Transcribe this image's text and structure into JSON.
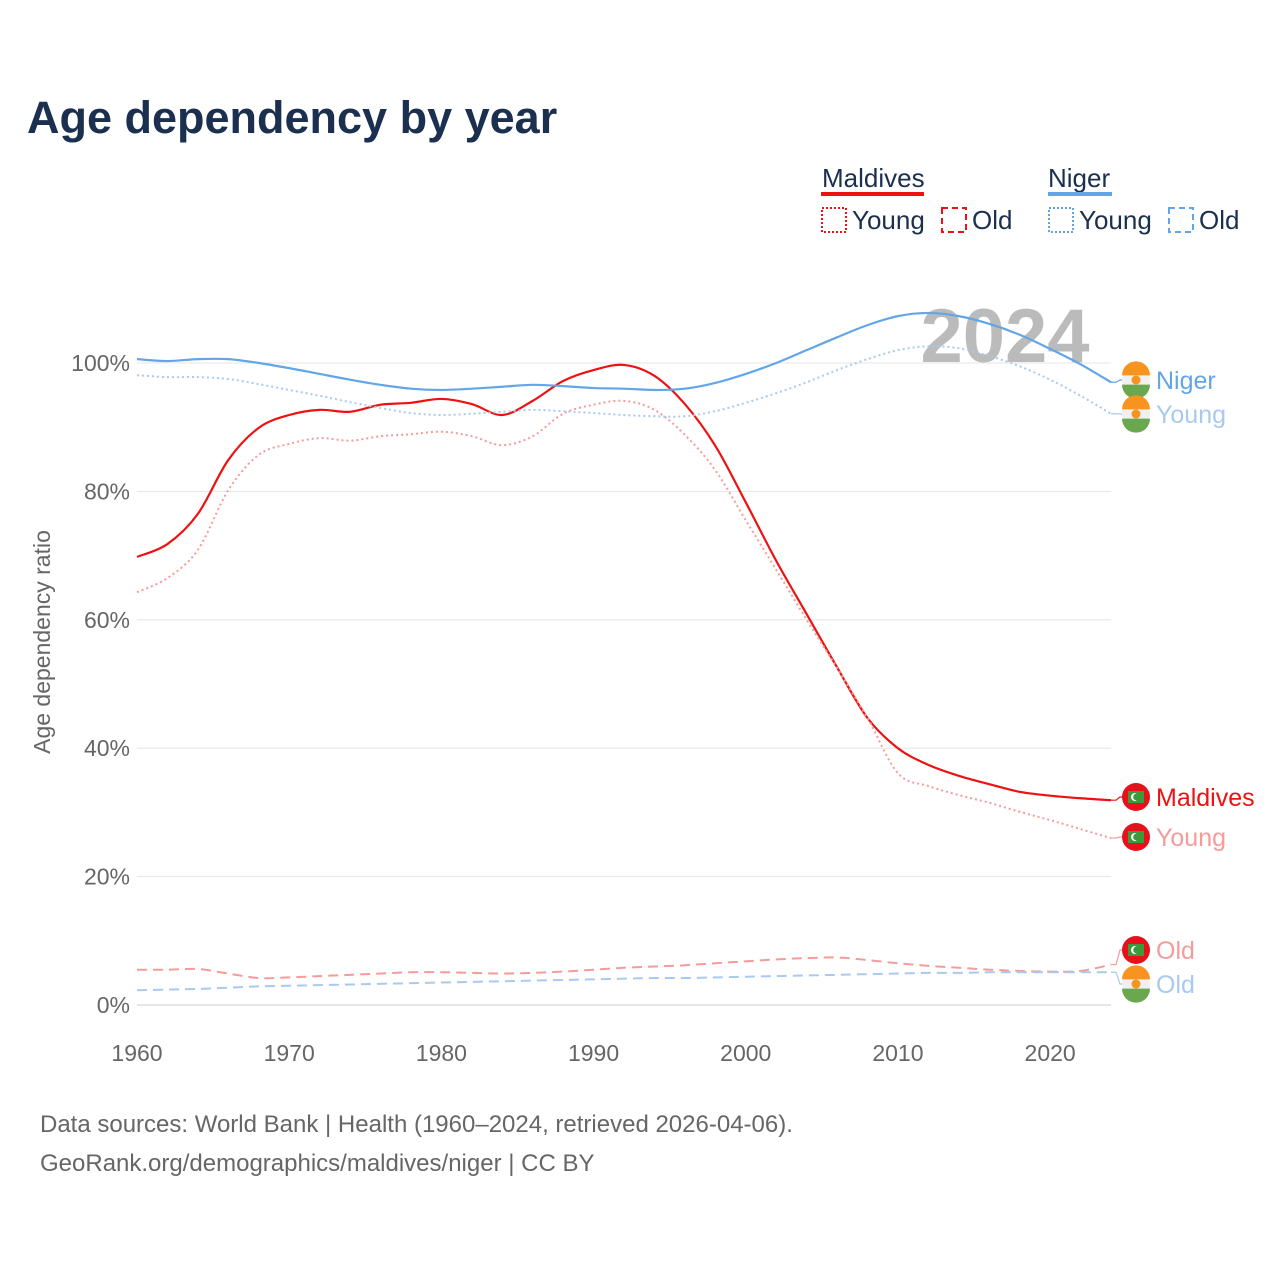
{
  "title": "Age dependency by year",
  "legend": {
    "groups": [
      {
        "name": "Maldives",
        "color": "#ee1111",
        "items": [
          "Young",
          "Old"
        ]
      },
      {
        "name": "Niger",
        "color": "#62a6e8",
        "items": [
          "Young",
          "Old"
        ]
      }
    ]
  },
  "current_year": "2024",
  "source_line1": "Data sources: World Bank | Health (1960–2024, retrieved 2026-04-06).",
  "source_line2": "GeoRank.org/demographics/maldives/niger | CC BY",
  "end_labels": {
    "niger_total": "Niger",
    "niger_young": "Young",
    "maldives_total": "Maldives",
    "maldives_young": "Young",
    "maldives_old": "Old",
    "niger_old": "Old"
  },
  "chart_data": {
    "type": "line",
    "title": "Age dependency by year",
    "xlabel": "",
    "ylabel": "Age dependency ratio",
    "xlim": [
      1960,
      2024
    ],
    "ylim": [
      0,
      100
    ],
    "x_ticks": [
      "1960",
      "1970",
      "1980",
      "1990",
      "2000",
      "2010",
      "2020"
    ],
    "y_ticks": [
      "0%",
      "20%",
      "40%",
      "60%",
      "80%",
      "100%"
    ],
    "grid": true,
    "legend_position": "top-right",
    "x": [
      1960,
      1962,
      1964,
      1966,
      1968,
      1970,
      1972,
      1974,
      1976,
      1978,
      1980,
      1982,
      1984,
      1986,
      1988,
      1990,
      1992,
      1994,
      1996,
      1998,
      2000,
      2002,
      2004,
      2006,
      2008,
      2010,
      2012,
      2014,
      2016,
      2018,
      2020,
      2022,
      2024
    ],
    "series": [
      {
        "name": "Maldives",
        "key": "maldives_total",
        "color": "#ee1111",
        "style": "solid",
        "values": [
          69.8,
          71.8,
          76.5,
          84.9,
          89.9,
          91.9,
          92.7,
          92.4,
          93.5,
          93.8,
          94.4,
          93.6,
          91.9,
          94.1,
          97.2,
          98.9,
          99.7,
          98.0,
          93.6,
          87.1,
          78.3,
          69.2,
          60.9,
          52.6,
          44.7,
          40.0,
          37.4,
          35.7,
          34.4,
          33.2,
          32.6,
          32.2,
          31.9
        ]
      },
      {
        "name": "Maldives Young",
        "key": "maldives_young",
        "color": "#f79a9a",
        "style": "dotted",
        "values": [
          64.3,
          66.5,
          70.9,
          80.2,
          85.7,
          87.4,
          88.3,
          87.9,
          88.6,
          88.9,
          89.3,
          88.6,
          87.2,
          88.6,
          92.1,
          93.5,
          94.1,
          92.7,
          88.8,
          83.3,
          75.5,
          67.8,
          60.0,
          52.5,
          44.7,
          36.1,
          34.1,
          32.7,
          31.5,
          30.1,
          28.8,
          27.4,
          26.0
        ]
      },
      {
        "name": "Maldives Old",
        "key": "maldives_old",
        "color": "#f79a9a",
        "style": "dashed",
        "values": [
          5.5,
          5.5,
          5.6,
          4.9,
          4.2,
          4.3,
          4.5,
          4.7,
          4.9,
          5.1,
          5.1,
          5.0,
          4.9,
          5.0,
          5.2,
          5.5,
          5.8,
          6.0,
          6.2,
          6.5,
          6.8,
          7.1,
          7.3,
          7.4,
          7.0,
          6.5,
          6.1,
          5.8,
          5.5,
          5.3,
          5.2,
          5.3,
          6.3
        ]
      },
      {
        "name": "Niger",
        "key": "niger_total",
        "color": "#62a6e8",
        "style": "solid",
        "values": [
          100.6,
          100.3,
          100.6,
          100.6,
          100.0,
          99.2,
          98.3,
          97.4,
          96.6,
          96.0,
          95.8,
          96.0,
          96.3,
          96.6,
          96.4,
          96.1,
          96.0,
          95.8,
          96.0,
          96.9,
          98.3,
          100.0,
          102.0,
          104.0,
          105.9,
          107.3,
          107.8,
          107.3,
          106.1,
          104.4,
          102.2,
          99.8,
          97.0
        ]
      },
      {
        "name": "Niger Young",
        "key": "niger_young",
        "color": "#a9c9ee",
        "style": "dotted",
        "values": [
          98.1,
          97.8,
          97.8,
          97.5,
          96.7,
          95.8,
          94.9,
          93.9,
          93.0,
          92.2,
          91.9,
          92.1,
          92.4,
          92.7,
          92.5,
          92.2,
          91.9,
          91.7,
          91.7,
          92.5,
          93.8,
          95.3,
          97.0,
          98.9,
          100.6,
          102.0,
          102.6,
          102.3,
          101.1,
          99.5,
          97.4,
          94.9,
          92.1
        ]
      },
      {
        "name": "Niger Old",
        "key": "niger_old",
        "color": "#a9c9ee",
        "style": "dashed",
        "values": [
          2.3,
          2.4,
          2.5,
          2.7,
          2.9,
          3.0,
          3.1,
          3.2,
          3.3,
          3.4,
          3.5,
          3.6,
          3.7,
          3.8,
          3.9,
          4.0,
          4.1,
          4.2,
          4.2,
          4.3,
          4.4,
          4.5,
          4.6,
          4.7,
          4.8,
          4.9,
          5.0,
          5.0,
          5.1,
          5.1,
          5.1,
          5.1,
          5.1
        ]
      }
    ]
  }
}
